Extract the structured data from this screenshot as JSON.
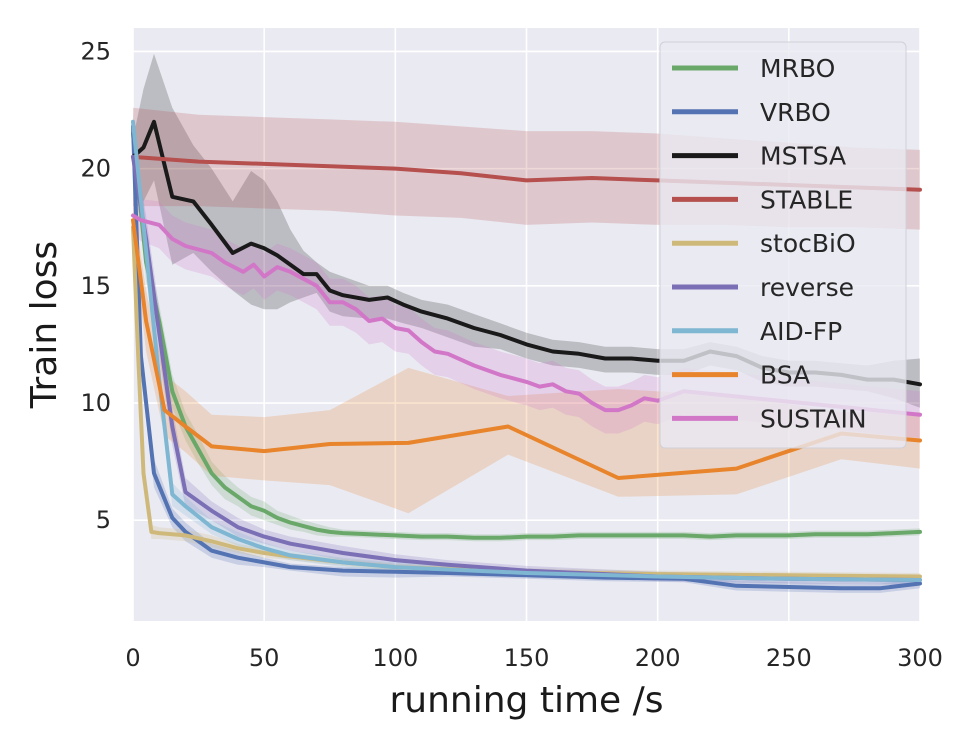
{
  "chart_data": {
    "type": "line",
    "title": "",
    "xlabel": "running time /s",
    "ylabel": "Train loss",
    "xlim": [
      0,
      300
    ],
    "ylim": [
      0.7,
      26
    ],
    "xticks": [
      0,
      50,
      100,
      150,
      200,
      250,
      300
    ],
    "yticks": [
      5,
      10,
      15,
      20,
      25
    ],
    "grid": true,
    "legend_position": "top-right",
    "series": [
      {
        "name": "MRBO",
        "color": "#6aa86a",
        "x": [
          0,
          5,
          10,
          15,
          20,
          25,
          30,
          35,
          40,
          45,
          50,
          55,
          60,
          65,
          70,
          75,
          80,
          90,
          100,
          110,
          120,
          130,
          140,
          150,
          160,
          170,
          180,
          190,
          200,
          210,
          220,
          230,
          240,
          250,
          260,
          270,
          280,
          290,
          300
        ],
        "y": [
          21.5,
          16.0,
          13.5,
          10.5,
          9.0,
          8.0,
          7.0,
          6.4,
          6.0,
          5.6,
          5.4,
          5.1,
          4.9,
          4.75,
          4.6,
          4.5,
          4.45,
          4.4,
          4.35,
          4.3,
          4.3,
          4.25,
          4.25,
          4.3,
          4.3,
          4.35,
          4.35,
          4.35,
          4.35,
          4.35,
          4.3,
          4.35,
          4.35,
          4.35,
          4.4,
          4.4,
          4.4,
          4.45,
          4.5
        ],
        "upper": [
          22.0,
          16.8,
          14.2,
          11.2,
          9.6,
          8.6,
          7.5,
          6.9,
          6.4,
          6.0,
          5.8,
          5.4,
          5.2,
          5.0,
          4.85,
          4.7,
          4.6,
          4.55,
          4.5,
          4.45,
          4.45,
          4.4,
          4.4,
          4.45,
          4.45,
          4.5,
          4.5,
          4.5,
          4.5,
          4.5,
          4.45,
          4.5,
          4.5,
          4.5,
          4.55,
          4.55,
          4.55,
          4.6,
          4.65
        ],
        "lower": [
          21.0,
          15.2,
          12.8,
          9.8,
          8.4,
          7.4,
          6.5,
          5.9,
          5.6,
          5.2,
          5.0,
          4.8,
          4.6,
          4.5,
          4.35,
          4.3,
          4.3,
          4.25,
          4.2,
          4.15,
          4.15,
          4.1,
          4.1,
          4.15,
          4.15,
          4.2,
          4.2,
          4.2,
          4.2,
          4.2,
          4.15,
          4.2,
          4.2,
          4.2,
          4.25,
          4.25,
          4.25,
          4.3,
          4.35
        ]
      },
      {
        "name": "VRBO",
        "color": "#5473b3",
        "x": [
          0,
          3,
          8,
          15,
          20,
          30,
          40,
          50,
          60,
          80,
          100,
          120,
          150,
          180,
          210,
          230,
          250,
          270,
          285,
          300
        ],
        "y": [
          21.8,
          12.0,
          7.0,
          5.1,
          4.5,
          3.7,
          3.4,
          3.2,
          3.0,
          2.85,
          2.8,
          2.75,
          2.65,
          2.55,
          2.5,
          2.2,
          2.15,
          2.1,
          2.1,
          2.3
        ],
        "upper": [
          22.2,
          12.8,
          7.6,
          5.5,
          4.9,
          4.0,
          3.7,
          3.4,
          3.15,
          3.0,
          2.95,
          2.9,
          2.8,
          2.7,
          2.65,
          2.4,
          2.35,
          2.3,
          2.3,
          2.5
        ],
        "lower": [
          21.4,
          11.2,
          6.4,
          4.7,
          4.1,
          3.4,
          3.1,
          3.0,
          2.85,
          2.6,
          2.55,
          2.6,
          2.5,
          2.4,
          2.35,
          2.0,
          1.95,
          1.9,
          1.9,
          2.1
        ]
      },
      {
        "name": "MSTSA",
        "color": "#1a1a1a",
        "x": [
          0,
          4,
          8,
          15,
          23,
          30,
          38,
          45,
          50,
          55,
          60,
          65,
          70,
          75,
          80,
          90,
          97,
          103,
          110,
          120,
          130,
          140,
          150,
          160,
          170,
          180,
          190,
          200,
          210,
          220,
          230,
          240,
          250,
          260,
          270,
          280,
          290,
          300
        ],
        "y": [
          20.5,
          20.9,
          22.0,
          18.8,
          18.6,
          17.6,
          16.4,
          16.8,
          16.6,
          16.3,
          15.9,
          15.5,
          15.5,
          14.8,
          14.6,
          14.4,
          14.5,
          14.2,
          13.9,
          13.6,
          13.2,
          12.9,
          12.5,
          12.2,
          12.1,
          11.9,
          11.9,
          11.8,
          11.8,
          12.2,
          12.0,
          11.5,
          11.3,
          11.3,
          11.2,
          11.0,
          11.0,
          10.8
        ],
        "upper": [
          21.3,
          23.4,
          24.9,
          22.6,
          21.0,
          20.0,
          18.6,
          19.9,
          19.5,
          18.6,
          17.4,
          16.5,
          16.0,
          15.6,
          15.4,
          15.0,
          15.0,
          14.7,
          14.4,
          14.2,
          13.8,
          13.4,
          13.0,
          12.7,
          12.6,
          12.4,
          12.4,
          12.3,
          12.3,
          12.6,
          12.4,
          12.0,
          11.8,
          11.8,
          11.7,
          11.6,
          11.8,
          11.9
        ],
        "lower": [
          19.7,
          18.6,
          19.5,
          15.9,
          16.4,
          15.6,
          14.8,
          14.2,
          14.0,
          14.0,
          14.3,
          14.5,
          14.7,
          13.9,
          13.7,
          13.6,
          13.6,
          13.4,
          13.2,
          12.8,
          12.4,
          12.3,
          11.9,
          11.6,
          11.5,
          11.3,
          11.3,
          11.2,
          11.2,
          11.6,
          11.4,
          10.9,
          10.7,
          10.7,
          10.6,
          10.5,
          10.2,
          9.8
        ]
      },
      {
        "name": "STABLE",
        "color": "#b5504e",
        "x": [
          0,
          25,
          50,
          75,
          100,
          125,
          150,
          175,
          200,
          225,
          250,
          275,
          300
        ],
        "y": [
          20.5,
          20.3,
          20.2,
          20.1,
          20.0,
          19.8,
          19.5,
          19.6,
          19.5,
          19.4,
          19.3,
          19.2,
          19.1
        ],
        "upper": [
          22.6,
          22.3,
          22.2,
          22.1,
          22.0,
          21.8,
          21.6,
          21.6,
          21.5,
          21.3,
          21.1,
          20.9,
          20.8
        ],
        "lower": [
          18.4,
          18.4,
          18.3,
          18.2,
          18.0,
          17.9,
          17.6,
          17.7,
          17.6,
          17.6,
          17.5,
          17.5,
          17.4
        ]
      },
      {
        "name": "stocBiO",
        "color": "#cfb97a",
        "x": [
          0,
          2,
          4,
          7,
          10,
          20,
          30,
          40,
          50,
          60,
          80,
          100,
          150,
          200,
          250,
          300
        ],
        "y": [
          17.5,
          12.0,
          7.0,
          4.5,
          4.45,
          4.35,
          4.1,
          3.8,
          3.6,
          3.45,
          3.2,
          3.0,
          2.8,
          2.7,
          2.65,
          2.6
        ],
        "upper": [
          18.2,
          12.8,
          7.6,
          4.8,
          4.7,
          4.6,
          4.35,
          4.0,
          3.8,
          3.6,
          3.35,
          3.15,
          2.95,
          2.85,
          2.8,
          2.75
        ],
        "lower": [
          16.8,
          11.2,
          6.4,
          4.2,
          4.2,
          4.1,
          3.85,
          3.6,
          3.4,
          3.3,
          3.05,
          2.85,
          2.65,
          2.55,
          2.5,
          2.45
        ]
      },
      {
        "name": "reverse",
        "color": "#7b6fb6",
        "x": [
          0,
          5,
          10,
          15,
          20,
          30,
          40,
          50,
          60,
          70,
          80,
          100,
          120,
          150,
          200,
          250,
          300
        ],
        "y": [
          20.5,
          17.0,
          13.0,
          9.0,
          6.2,
          5.4,
          4.7,
          4.3,
          4.0,
          3.8,
          3.6,
          3.3,
          3.1,
          2.85,
          2.6,
          2.5,
          2.45
        ],
        "upper": [
          21.3,
          18.0,
          14.0,
          9.8,
          6.8,
          5.8,
          5.1,
          4.6,
          4.3,
          4.1,
          3.9,
          3.55,
          3.3,
          3.05,
          2.8,
          2.7,
          2.65
        ],
        "lower": [
          19.7,
          16.0,
          12.0,
          8.2,
          5.6,
          5.0,
          4.3,
          4.0,
          3.7,
          3.5,
          3.3,
          3.05,
          2.9,
          2.65,
          2.4,
          2.3,
          2.25
        ]
      },
      {
        "name": "AID-FP",
        "color": "#7fb6d2",
        "x": [
          0,
          5,
          10,
          15,
          20,
          30,
          40,
          50,
          60,
          80,
          100,
          150,
          200,
          250,
          300
        ],
        "y": [
          22.0,
          16.5,
          11.0,
          6.1,
          5.6,
          4.7,
          4.2,
          3.8,
          3.5,
          3.2,
          3.0,
          2.75,
          2.6,
          2.5,
          2.45
        ],
        "upper": [
          22.4,
          17.3,
          11.8,
          6.6,
          6.0,
          5.0,
          4.5,
          4.05,
          3.7,
          3.4,
          3.2,
          2.9,
          2.75,
          2.65,
          2.6
        ],
        "lower": [
          21.6,
          15.7,
          10.2,
          5.6,
          5.2,
          4.4,
          3.9,
          3.55,
          3.3,
          3.0,
          2.8,
          2.6,
          2.45,
          2.35,
          2.3
        ]
      },
      {
        "name": "BSA",
        "color": "#e8842b",
        "x": [
          0,
          5,
          12,
          20,
          30,
          50,
          75,
          105,
          143,
          185,
          230,
          270,
          300
        ],
        "y": [
          17.8,
          13.5,
          9.7,
          9.0,
          8.15,
          7.95,
          8.25,
          8.3,
          9.0,
          6.8,
          7.2,
          8.7,
          8.4
        ],
        "upper": [
          18.6,
          14.8,
          11.2,
          10.5,
          9.5,
          9.4,
          9.7,
          11.5,
          10.3,
          10.6,
          10.3,
          9.6,
          9.6
        ],
        "lower": [
          17.0,
          12.2,
          8.6,
          7.9,
          6.9,
          6.7,
          6.5,
          5.3,
          7.8,
          6.0,
          6.1,
          7.6,
          7.2
        ]
      },
      {
        "name": "SUSTAIN",
        "color": "#d277c8",
        "x": [
          0,
          3,
          10,
          15,
          20,
          30,
          35,
          42,
          46,
          50,
          55,
          60,
          70,
          75,
          80,
          85,
          90,
          95,
          100,
          105,
          110,
          115,
          120,
          130,
          140,
          150,
          155,
          160,
          165,
          170,
          175,
          180,
          185,
          190,
          195,
          200,
          205,
          210,
          300
        ],
        "y": [
          18.0,
          17.8,
          17.6,
          17.0,
          16.7,
          16.4,
          16.0,
          15.6,
          15.9,
          15.4,
          15.8,
          15.6,
          15.0,
          14.3,
          14.3,
          14.0,
          13.5,
          13.6,
          13.2,
          13.1,
          12.6,
          12.2,
          12.1,
          11.6,
          11.2,
          10.9,
          10.7,
          10.8,
          10.5,
          10.4,
          10.0,
          9.7,
          9.7,
          9.9,
          10.2,
          10.1,
          10.3,
          10.5,
          9.5
        ],
        "upper": [
          18.8,
          18.7,
          18.6,
          18.0,
          17.7,
          17.4,
          17.0,
          16.6,
          16.9,
          16.4,
          16.8,
          16.6,
          16.0,
          15.3,
          15.3,
          15.0,
          14.5,
          14.6,
          14.2,
          14.1,
          13.6,
          13.2,
          13.1,
          12.6,
          12.2,
          11.9,
          11.7,
          11.8,
          11.5,
          11.4,
          11.0,
          10.7,
          10.7,
          10.9,
          11.2,
          11.1,
          11.3,
          11.5,
          10.5
        ],
        "lower": [
          17.2,
          16.9,
          16.6,
          16.0,
          15.7,
          15.4,
          15.0,
          14.6,
          14.9,
          14.4,
          14.8,
          14.6,
          14.0,
          13.3,
          13.3,
          13.0,
          12.5,
          12.6,
          12.2,
          12.1,
          11.6,
          11.2,
          11.1,
          10.6,
          10.2,
          9.9,
          9.7,
          9.8,
          9.5,
          9.4,
          9.0,
          8.7,
          8.7,
          8.9,
          9.2,
          9.1,
          9.3,
          9.5,
          8.5
        ]
      }
    ]
  }
}
